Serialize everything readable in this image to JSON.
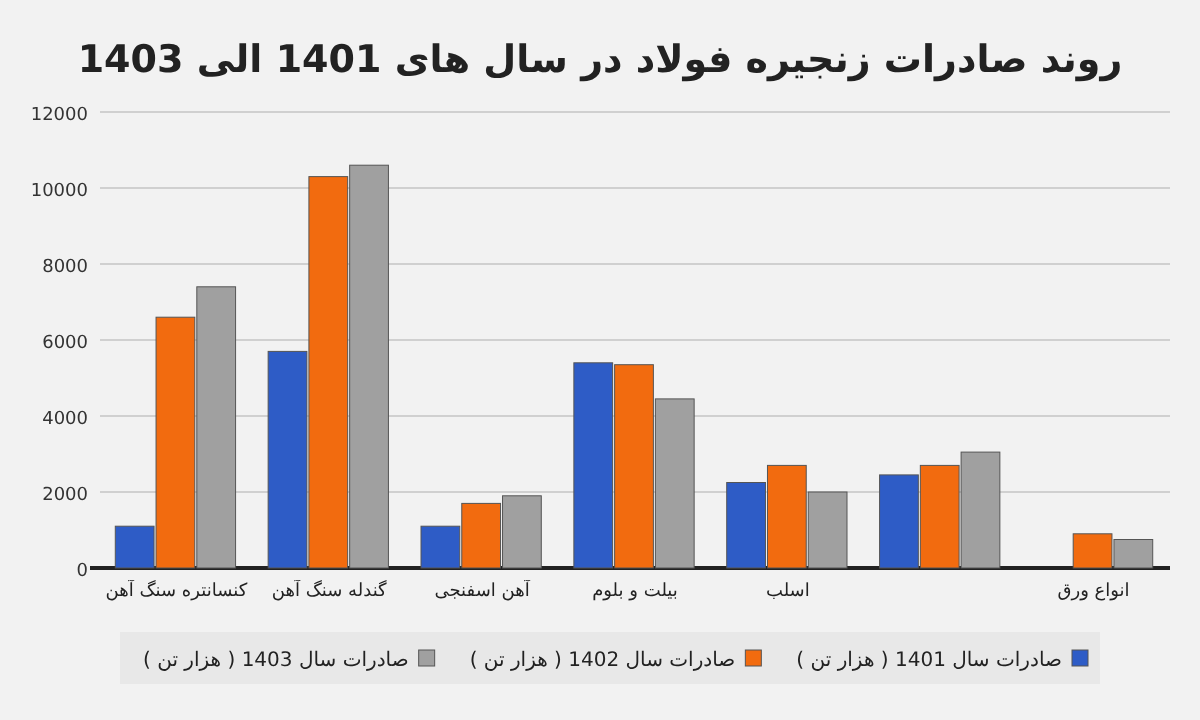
{
  "chart_data": {
    "type": "bar",
    "title": "روند صادرات زنجیره فولاد در سال های **1401** الی **1403**",
    "categories": [
      "کنسانتره سنگ آهن",
      "گندله سنگ آهن",
      "آهن اسفنجی",
      "بیلت و بلوم",
      "اسلب",
      null,
      "انواع ورق"
    ],
    "series": [
      {
        "name": "صادرات سال 1401 ( هزار تن )",
        "color": "#2e5cc6",
        "values": [
          1100,
          5700,
          1100,
          5400,
          2250,
          2450,
          null
        ]
      },
      {
        "name": "صادرات سال 1402 ( هزار تن )",
        "color": "#f26b0f",
        "values": [
          6600,
          10300,
          1700,
          5350,
          2700,
          2700,
          900
        ]
      },
      {
        "name": "صادرات سال 1403 ( هزار تن )",
        "color": "#a0a0a0",
        "values": [
          7400,
          10600,
          1900,
          4450,
          2000,
          3050,
          750
        ]
      }
    ],
    "ylim": [
      0,
      12000
    ],
    "yticks": [
      0,
      2000,
      4000,
      6000,
      8000,
      10000,
      12000
    ],
    "grid": "y",
    "legend": "bottom"
  }
}
